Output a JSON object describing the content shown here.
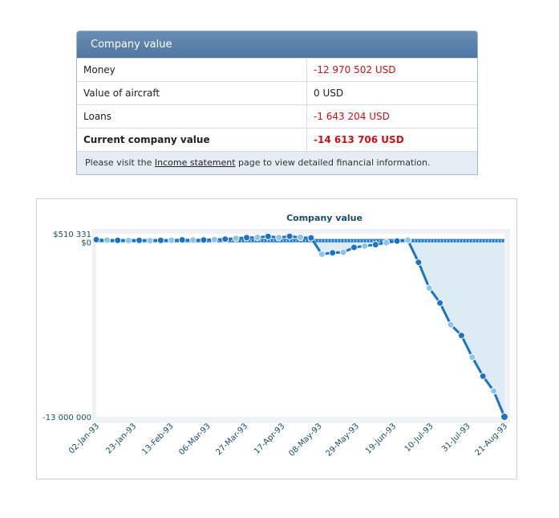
{
  "summary": {
    "title": "Company value",
    "rows": [
      {
        "label": "Money",
        "value": "-12 970 502 USD",
        "negative": true
      },
      {
        "label": "Value of aircraft",
        "value": "0 USD",
        "negative": false
      },
      {
        "label": "Loans",
        "value": "-1 643 204 USD",
        "negative": true
      },
      {
        "label": "Current company value",
        "value": "-14 613 706 USD",
        "negative": true
      }
    ],
    "note_before": "Please visit the ",
    "note_link": "Income statement",
    "note_after": " page to view detailed financial information."
  },
  "colors": {
    "negative": "#cc1111",
    "line": "#1a73c4",
    "point_light": "#8ec4e8",
    "area": "#d5e6f3"
  },
  "chart_data": {
    "type": "line",
    "title": "Company value",
    "xlabel": "",
    "ylabel": "",
    "ylim": [
      -13000000,
      510331
    ],
    "yticks": [
      "$510 331",
      "$0",
      "-13 000 000"
    ],
    "xticks": [
      "02-Jan-93",
      "23-Jan-93",
      "13-Feb-93",
      "06-Mar-93",
      "27-Mar-93",
      "17-Apr-93",
      "08-May-93",
      "29-May-93",
      "19-Jun-93",
      "10-Jul-93",
      "31-Jul-93",
      "21-Aug-93"
    ],
    "x_start": "02-Jan-93",
    "x_end": "21-Aug-93",
    "series": [
      {
        "values": [
          70000,
          40000,
          20000,
          10000,
          20000,
          0,
          20000,
          30000,
          60000,
          40000,
          50000,
          70000,
          110000,
          170000,
          220000,
          240000,
          310000,
          230000,
          320000,
          240000,
          200000,
          -1000000,
          -900000,
          -860000,
          -500000,
          -400000,
          -300000,
          -150000,
          -30000,
          40000,
          -1600000,
          -3500000,
          -4600000,
          -6200000,
          -7000000,
          -8600000,
          -10000000,
          -11100000,
          -13000000
        ]
      }
    ]
  }
}
